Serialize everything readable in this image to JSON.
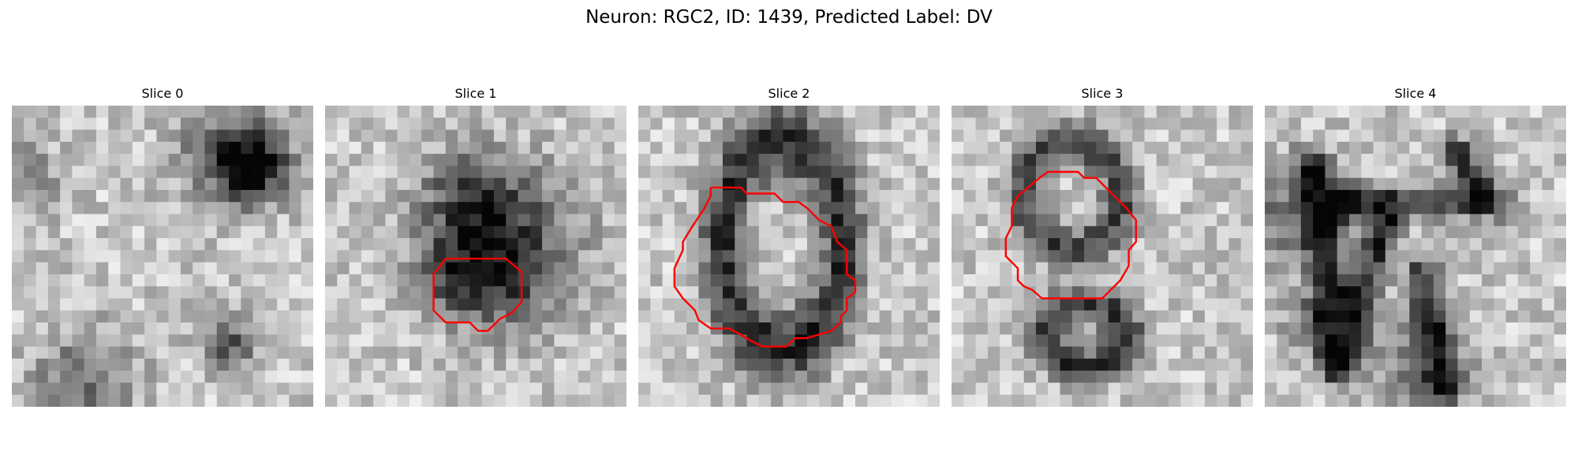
{
  "figure": {
    "title": "Neuron: RGC2, ID: 1439, Predicted Label: DV"
  },
  "panels": [
    {
      "title": "Slice 0",
      "seed": 11,
      "outline_color": "#ff0000"
    },
    {
      "title": "Slice 1",
      "seed": 23,
      "outline_color": "#ff0000"
    },
    {
      "title": "Slice 2",
      "seed": 37,
      "outline_color": "#ff0000"
    },
    {
      "title": "Slice 3",
      "seed": 53,
      "outline_color": "#ff0000"
    },
    {
      "title": "Slice 4",
      "seed": 71,
      "outline_color": "#ff0000"
    }
  ]
}
